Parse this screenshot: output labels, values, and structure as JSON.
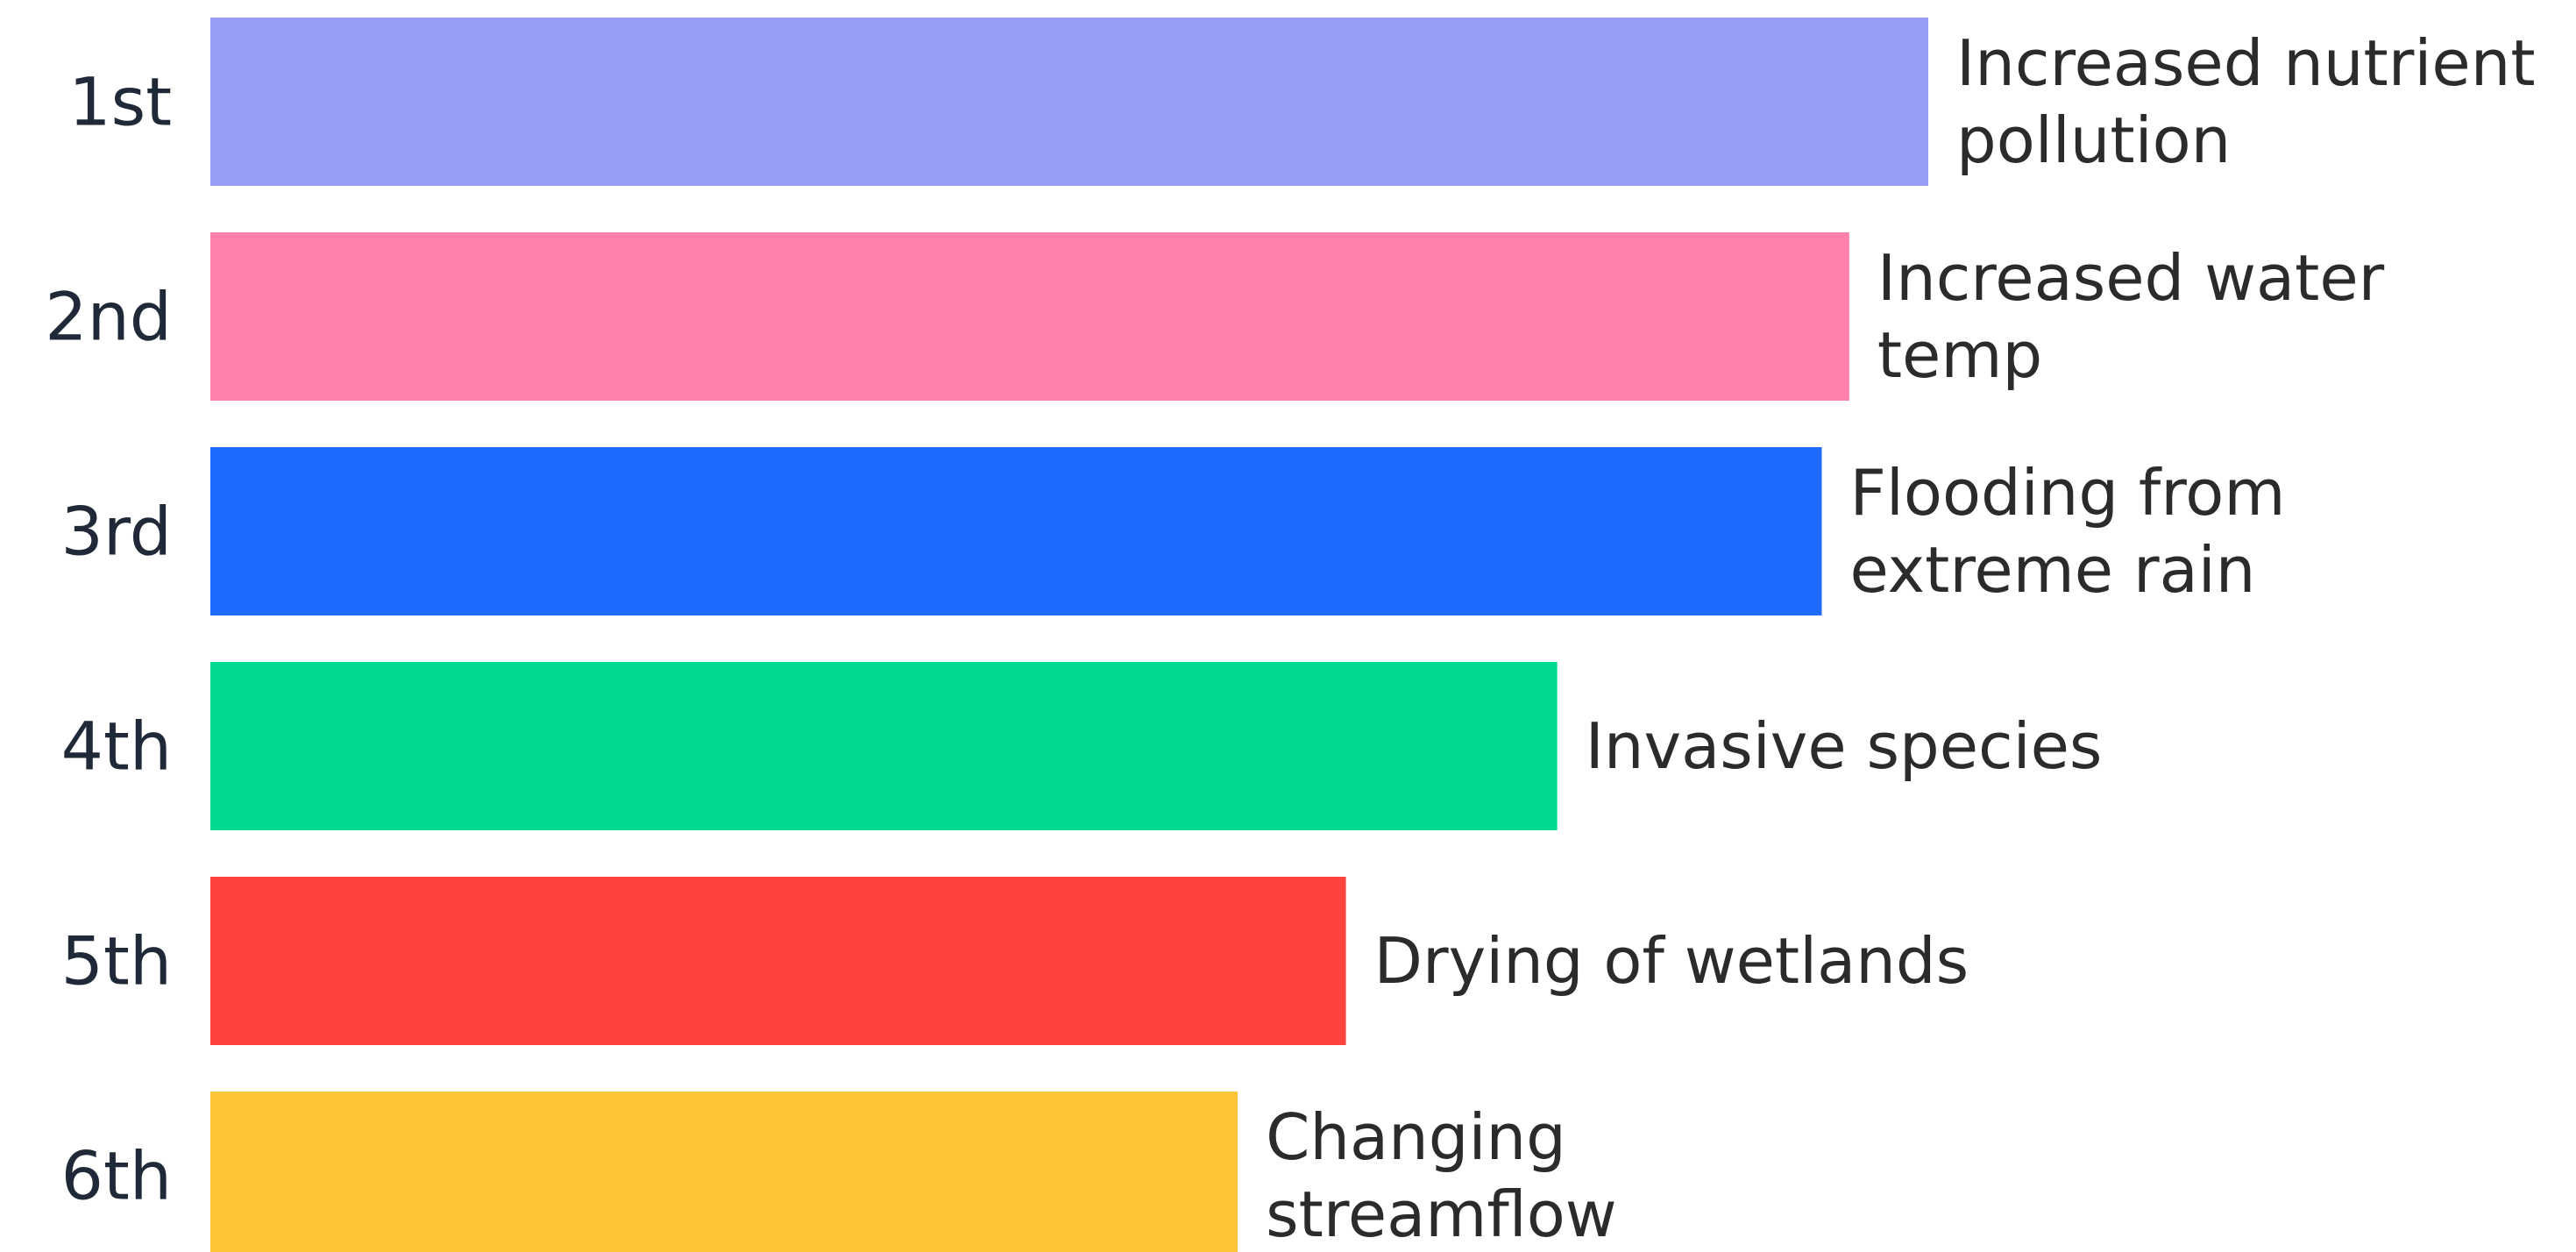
{
  "chart_data": {
    "type": "bar",
    "orientation": "horizontal",
    "title": "",
    "xlabel": "",
    "ylabel": "",
    "grid": false,
    "legend": "none",
    "categories": [
      "1st",
      "2nd",
      "3rd",
      "4th",
      "5th",
      "6th"
    ],
    "bars": [
      {
        "rank": "1st",
        "label": [
          "Increased nutrient",
          "pollution"
        ],
        "value": 100,
        "color": "#979CF5"
      },
      {
        "rank": "2nd",
        "label": [
          "Increased water",
          "temp"
        ],
        "value": 95.4,
        "color": "#FF80A9"
      },
      {
        "rank": "3rd",
        "label": [
          "Flooding from",
          "extreme rain"
        ],
        "value": 93.8,
        "color": "#1F6BFF"
      },
      {
        "rank": "4th",
        "label": [
          "Invasive species"
        ],
        "value": 78.4,
        "color": "#00D990"
      },
      {
        "rank": "5th",
        "label": [
          "Drying of wetlands"
        ],
        "value": 66.1,
        "color": "#FF4140"
      },
      {
        "rank": "6th",
        "label": [
          "Changing",
          "streamflow"
        ],
        "value": 59.8,
        "color": "#FDC535"
      }
    ]
  }
}
